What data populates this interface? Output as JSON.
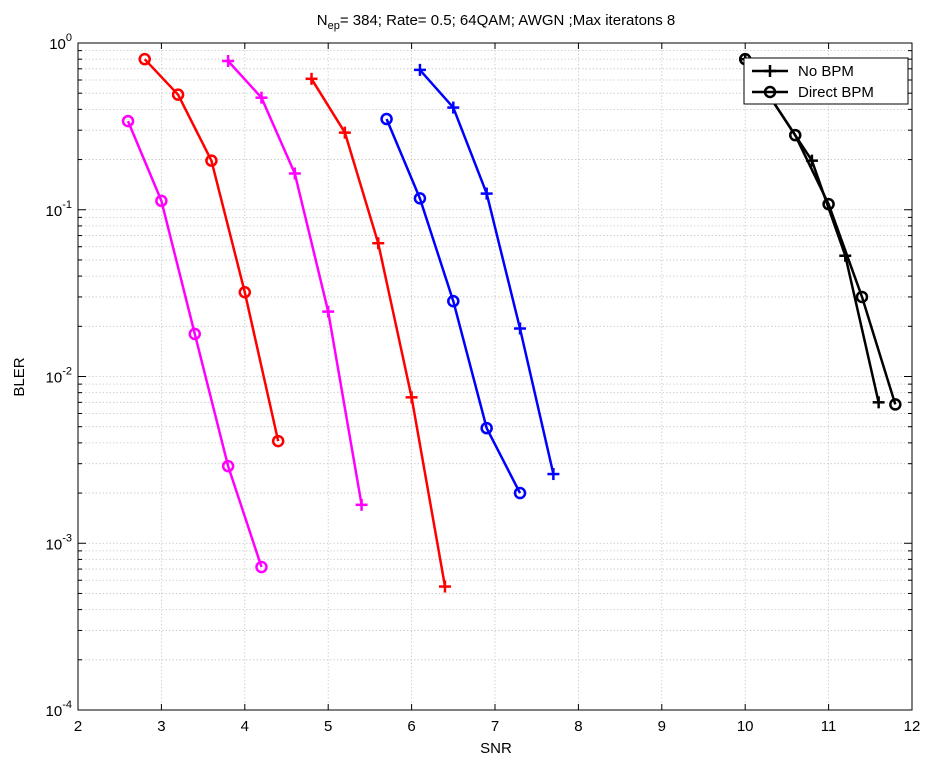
{
  "chart_data": {
    "type": "line",
    "title": {
      "n_prefix": "N",
      "n_subscript": "ep",
      "rest": "= 384;  Rate= 0.5;  64QAM; AWGN ;Max iteratons 8"
    },
    "xlabel": "SNR",
    "ylabel": "BLER",
    "xlim": [
      2,
      12
    ],
    "ylim": [
      0.0001,
      1
    ],
    "yscale": "log",
    "grid": true,
    "x_ticks": [
      2,
      3,
      4,
      5,
      6,
      7,
      8,
      9,
      10,
      11,
      12
    ],
    "x_tick_labels": [
      "2",
      "3",
      "4",
      "5",
      "6",
      "7",
      "8",
      "9",
      "10",
      "11",
      "12"
    ],
    "y_ticks": [
      {
        "value": 1,
        "base": "10",
        "exp": "0"
      },
      {
        "value": 0.1,
        "base": "10",
        "exp": "-1"
      },
      {
        "value": 0.01,
        "base": "10",
        "exp": "-2"
      },
      {
        "value": 0.001,
        "base": "10",
        "exp": "-3"
      },
      {
        "value": 0.0001,
        "base": "10",
        "exp": "-4"
      }
    ],
    "legend": {
      "position": "top-right",
      "entries": [
        {
          "label": "No BPM",
          "marker": "plus",
          "color": "#000000"
        },
        {
          "label": "Direct BPM",
          "marker": "circle",
          "color": "#000000"
        }
      ]
    },
    "series": [
      {
        "color": "#ff00ff",
        "marker": "circle",
        "x": [
          2.6,
          3.0,
          3.4,
          3.8,
          4.2
        ],
        "y": [
          0.34,
          0.113,
          0.018,
          0.0029,
          0.00072
        ]
      },
      {
        "color": "#ff00ff",
        "marker": "plus",
        "x": [
          3.8,
          4.2,
          4.6,
          5.0,
          5.4
        ],
        "y": [
          0.78,
          0.47,
          0.165,
          0.0245,
          0.0017
        ]
      },
      {
        "color": "#ff0000",
        "marker": "circle",
        "x": [
          2.8,
          3.2,
          3.6,
          4.0,
          4.4
        ],
        "y": [
          0.8,
          0.49,
          0.197,
          0.032,
          0.0041
        ]
      },
      {
        "color": "#ff0000",
        "marker": "plus",
        "x": [
          4.8,
          5.2,
          5.6,
          6.0,
          6.4
        ],
        "y": [
          0.61,
          0.29,
          0.063,
          0.0075,
          0.00055
        ]
      },
      {
        "color": "#0000ff",
        "marker": "circle",
        "x": [
          5.7,
          6.1,
          6.5,
          6.9,
          7.3
        ],
        "y": [
          0.35,
          0.117,
          0.0283,
          0.0049,
          0.002
        ]
      },
      {
        "color": "#0000ff",
        "marker": "plus",
        "x": [
          6.1,
          6.5,
          6.9,
          7.3,
          7.7
        ],
        "y": [
          0.69,
          0.41,
          0.125,
          0.0194,
          0.0026
        ]
      },
      {
        "color": "#000000",
        "marker": "circle",
        "x": [
          10.0,
          10.6,
          11.0,
          11.4,
          11.8
        ],
        "y": [
          0.8,
          0.28,
          0.108,
          0.03,
          0.0068
        ]
      },
      {
        "color": "#000000",
        "marker": "plus",
        "x": [
          10.0,
          10.8,
          11.2,
          11.6
        ],
        "y": [
          0.8,
          0.197,
          0.053,
          0.007
        ]
      }
    ]
  }
}
